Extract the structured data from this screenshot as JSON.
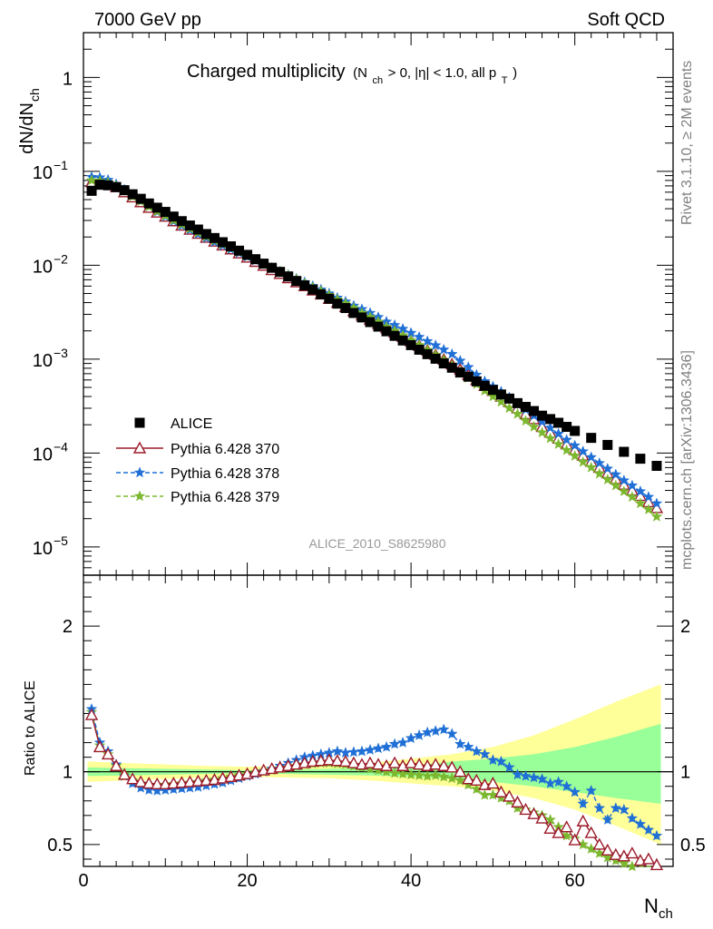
{
  "header": {
    "left": "7000 GeV pp",
    "right": "Soft QCD"
  },
  "side_labels": {
    "rivet": "Rivet 3.1.10, ≥ 2M events",
    "mcplots": "mcplots.cern.ch [arXiv:1306.3436]"
  },
  "plot_title": {
    "main": "Charged multiplicity",
    "paren_open": "(N",
    "sub1": "ch",
    "mid": " > 0, |η| < 1.0, all p",
    "sub2": "T",
    "paren_close": ")"
  },
  "analysis_id": "ALICE_2010_S8625980",
  "ylabel_top": {
    "main": "dN/dN",
    "sub": "ch"
  },
  "ylabel_ratio": "Ratio to ALICE",
  "xlabel": {
    "main": "N",
    "sub": "ch"
  },
  "chart_data": {
    "type": "scatter",
    "x_range": [
      0,
      72
    ],
    "x_ticks": [
      0,
      20,
      40,
      60
    ],
    "top_panel": {
      "yscale": "log",
      "y_range": [
        5e-06,
        3
      ],
      "y_tick_labels": [
        {
          "value": 1,
          "label": "1"
        },
        {
          "value": 0.1,
          "base": "10",
          "exp": "−1"
        },
        {
          "value": 0.01,
          "base": "10",
          "exp": "−2"
        },
        {
          "value": 0.001,
          "base": "10",
          "exp": "−3"
        },
        {
          "value": 0.0001,
          "base": "10",
          "exp": "−4"
        },
        {
          "value": 1e-05,
          "base": "10",
          "exp": "−5"
        }
      ]
    },
    "ratio_panel": {
      "y_range": [
        0.35,
        2.35
      ],
      "y_tick_labels": [
        {
          "value": 0.5,
          "label": "0.5"
        },
        {
          "value": 1,
          "label": "1"
        },
        {
          "value": 2,
          "label": "2"
        }
      ]
    },
    "legend": {
      "placement": "lower-left",
      "entries": [
        "ALICE",
        "Pythia 6.428 370",
        "Pythia 6.428 378",
        "Pythia 6.428 379"
      ]
    },
    "colors": {
      "data": "#000000",
      "p370": "#9b1b2a",
      "p378": "#1f6fd6",
      "p379": "#7cb82f",
      "band_outer": "#ffff99",
      "band_inner": "#99ff99"
    },
    "series": [
      {
        "name": "ALICE",
        "x": [
          1,
          2,
          3,
          4,
          5,
          6,
          7,
          8,
          9,
          10,
          11,
          12,
          13,
          14,
          15,
          16,
          17,
          18,
          19,
          20,
          21,
          22,
          23,
          24,
          25,
          26,
          27,
          28,
          29,
          30,
          31,
          32,
          33,
          34,
          35,
          36,
          37,
          38,
          39,
          40,
          41,
          42,
          43,
          44,
          45,
          46,
          47,
          48,
          49,
          50,
          51,
          52,
          53,
          54,
          55,
          56,
          57,
          58,
          59,
          60,
          62,
          64,
          66,
          68,
          70
        ],
        "y": [
          0.062,
          0.072,
          0.071,
          0.068,
          0.063,
          0.057,
          0.051,
          0.0455,
          0.041,
          0.037,
          0.033,
          0.0295,
          0.0265,
          0.024,
          0.0215,
          0.0195,
          0.0176,
          0.0159,
          0.0143,
          0.0129,
          0.0116,
          0.0104,
          0.0094,
          0.0085,
          0.0076,
          0.0068,
          0.0061,
          0.0055,
          0.0049,
          0.0044,
          0.0039,
          0.0035,
          0.0031,
          0.00278,
          0.00248,
          0.00222,
          0.00198,
          0.00177,
          0.00158,
          0.00141,
          0.00126,
          0.00113,
          0.00101,
          0.0009,
          0.00081,
          0.00072,
          0.00065,
          0.00058,
          0.00052,
          0.00047,
          0.00042,
          0.00038,
          0.00034,
          0.00031,
          0.00028,
          0.00025,
          0.00023,
          0.00021,
          0.00019,
          0.000172,
          0.000145,
          0.000122,
          0.000103,
          8.7e-05,
          7.3e-05
        ]
      },
      {
        "name": "Pythia 6.428 370",
        "x": [
          1,
          2,
          3,
          4,
          5,
          6,
          7,
          8,
          9,
          10,
          11,
          12,
          13,
          14,
          15,
          16,
          17,
          18,
          19,
          20,
          21,
          22,
          23,
          24,
          25,
          26,
          27,
          28,
          29,
          30,
          31,
          32,
          33,
          34,
          35,
          36,
          37,
          38,
          39,
          40,
          41,
          42,
          43,
          44,
          45,
          46,
          47,
          48,
          49,
          50,
          51,
          52,
          53,
          54,
          55,
          56,
          57,
          58,
          59,
          60,
          61,
          62,
          63,
          64,
          65,
          66,
          67,
          68,
          69,
          70
        ],
        "y": [
          0.077,
          0.076,
          0.074,
          0.068,
          0.06,
          0.053,
          0.047,
          0.041,
          0.0365,
          0.033,
          0.0295,
          0.0265,
          0.024,
          0.0217,
          0.0197,
          0.0179,
          0.0163,
          0.0148,
          0.0134,
          0.0121,
          0.0109,
          0.0099,
          0.0089,
          0.0081,
          0.0073,
          0.0066,
          0.006,
          0.0054,
          0.0049,
          0.0044,
          0.004,
          0.0036,
          0.00325,
          0.00293,
          0.00264,
          0.00238,
          0.00214,
          0.00192,
          0.00173,
          0.00155,
          0.00139,
          0.00124,
          0.00111,
          0.00099,
          0.00088,
          0.00078,
          0.00068,
          0.0006,
          0.00052,
          0.00046,
          0.0004,
          0.00035,
          0.0003,
          0.00026,
          0.00023,
          0.00019,
          0.000165,
          0.000143,
          0.000124,
          0.000108,
          9.4e-05,
          8.1e-05,
          7e-05,
          6.1e-05,
          5.3e-05,
          4.6e-05,
          4e-05,
          3.5e-05,
          3e-05,
          2.6e-05
        ]
      },
      {
        "name": "Pythia 6.428 378",
        "x": [
          1,
          2,
          3,
          4,
          5,
          6,
          7,
          8,
          9,
          10,
          11,
          12,
          13,
          14,
          15,
          16,
          17,
          18,
          19,
          20,
          21,
          22,
          23,
          24,
          25,
          26,
          27,
          28,
          29,
          30,
          31,
          32,
          33,
          34,
          35,
          36,
          37,
          38,
          39,
          40,
          41,
          42,
          43,
          44,
          45,
          46,
          47,
          48,
          49,
          50,
          51,
          52,
          53,
          54,
          55,
          56,
          57,
          58,
          59,
          60,
          61,
          62,
          63,
          64,
          65,
          66,
          67,
          68,
          69,
          70
        ],
        "y": [
          0.087,
          0.086,
          0.081,
          0.073,
          0.064,
          0.056,
          0.048,
          0.042,
          0.037,
          0.033,
          0.0295,
          0.0264,
          0.0238,
          0.0215,
          0.0195,
          0.0177,
          0.0162,
          0.0148,
          0.0135,
          0.0123,
          0.0112,
          0.0102,
          0.0093,
          0.0086,
          0.0079,
          0.0072,
          0.0066,
          0.006,
          0.0055,
          0.005,
          0.0045,
          0.0041,
          0.0037,
          0.0034,
          0.0031,
          0.0028,
          0.0025,
          0.0023,
          0.0021,
          0.0019,
          0.00172,
          0.00155,
          0.0014,
          0.00126,
          0.00113,
          0.00096,
          0.00082,
          0.00068,
          0.00058,
          0.00051,
          0.00045,
          0.00039,
          0.00033,
          0.00029,
          0.00025,
          0.000215,
          0.000185,
          0.00016,
          0.000138,
          0.00012,
          0.000104,
          9e-05,
          7.8e-05,
          6.8e-05,
          5.9e-05,
          5.1e-05,
          4.5e-05,
          3.9e-05,
          3.4e-05,
          2.9e-05
        ]
      },
      {
        "name": "Pythia 6.428 379",
        "x": [
          1,
          2,
          3,
          4,
          5,
          6,
          7,
          8,
          9,
          10,
          11,
          12,
          13,
          14,
          15,
          16,
          17,
          18,
          19,
          20,
          21,
          22,
          23,
          24,
          25,
          26,
          27,
          28,
          29,
          30,
          31,
          32,
          33,
          34,
          35,
          36,
          37,
          38,
          39,
          40,
          41,
          42,
          43,
          44,
          45,
          46,
          47,
          48,
          49,
          50,
          51,
          52,
          53,
          54,
          55,
          56,
          57,
          58,
          59,
          60,
          61,
          62,
          63,
          64,
          65,
          66,
          67,
          68,
          69,
          70
        ],
        "y": [
          0.08,
          0.079,
          0.076,
          0.07,
          0.062,
          0.054,
          0.048,
          0.042,
          0.0375,
          0.0337,
          0.0302,
          0.0272,
          0.0246,
          0.0223,
          0.0202,
          0.0184,
          0.0168,
          0.0153,
          0.0139,
          0.0126,
          0.0114,
          0.0103,
          0.0094,
          0.0086,
          0.0078,
          0.0071,
          0.0064,
          0.0058,
          0.0053,
          0.0048,
          0.0043,
          0.0039,
          0.0035,
          0.0031,
          0.0028,
          0.0025,
          0.0022,
          0.002,
          0.00178,
          0.00159,
          0.00141,
          0.00125,
          0.00111,
          0.00098,
          0.00086,
          0.00074,
          0.00063,
          0.00054,
          0.00046,
          0.0004,
          0.00035,
          0.0003,
          0.00026,
          0.00022,
          0.00019,
          0.000165,
          0.000143,
          0.000124,
          0.000107,
          9.3e-05,
          8e-05,
          7e-05,
          6e-05,
          5.2e-05,
          4.5e-05,
          3.9e-05,
          3.4e-05,
          2.9e-05,
          2.5e-05,
          2.1e-05
        ]
      }
    ],
    "ratios": {
      "x": [
        1,
        2,
        3,
        4,
        5,
        6,
        7,
        8,
        9,
        10,
        11,
        12,
        13,
        14,
        15,
        16,
        17,
        18,
        19,
        20,
        21,
        22,
        23,
        24,
        25,
        26,
        27,
        28,
        29,
        30,
        31,
        32,
        33,
        34,
        35,
        36,
        37,
        38,
        39,
        40,
        41,
        42,
        43,
        44,
        45,
        46,
        47,
        48,
        49,
        50,
        51,
        52,
        53,
        54,
        55,
        56,
        57,
        58,
        59,
        60,
        61,
        62,
        63,
        64,
        65,
        66,
        67,
        68,
        69,
        70
      ],
      "p370": [
        1.39,
        1.17,
        1.12,
        1.04,
        0.98,
        0.95,
        0.93,
        0.92,
        0.915,
        0.915,
        0.92,
        0.925,
        0.93,
        0.935,
        0.94,
        0.945,
        0.955,
        0.965,
        0.975,
        0.985,
        1.0,
        1.01,
        1.02,
        1.03,
        1.04,
        1.05,
        1.06,
        1.07,
        1.075,
        1.08,
        1.075,
        1.07,
        1.06,
        1.05,
        1.06,
        1.05,
        1.04,
        1.06,
        1.04,
        1.06,
        1.05,
        1.04,
        1.05,
        1.04,
        1.03,
        1.0,
        0.95,
        0.94,
        0.91,
        0.92,
        0.86,
        0.83,
        0.79,
        0.74,
        0.71,
        0.68,
        0.61,
        0.58,
        0.62,
        0.53,
        0.66,
        0.58,
        0.5,
        0.46,
        0.43,
        0.42,
        0.44,
        0.39,
        0.4,
        0.36
      ],
      "p378": [
        1.43,
        1.2,
        1.14,
        1.05,
        0.97,
        0.92,
        0.89,
        0.875,
        0.87,
        0.875,
        0.88,
        0.885,
        0.89,
        0.895,
        0.905,
        0.915,
        0.925,
        0.94,
        0.955,
        0.97,
        0.985,
        1.0,
        1.02,
        1.04,
        1.06,
        1.08,
        1.1,
        1.11,
        1.12,
        1.13,
        1.14,
        1.13,
        1.135,
        1.14,
        1.15,
        1.16,
        1.17,
        1.19,
        1.2,
        1.23,
        1.25,
        1.27,
        1.28,
        1.29,
        1.26,
        1.19,
        1.17,
        1.14,
        1.12,
        1.08,
        1.07,
        1.03,
        0.98,
        0.97,
        0.96,
        0.95,
        0.92,
        0.93,
        0.9,
        0.86,
        0.78,
        0.87,
        0.75,
        0.67,
        0.75,
        0.74,
        0.68,
        0.64,
        0.6,
        0.56
      ],
      "p379": [
        1.41,
        1.18,
        1.12,
        1.04,
        0.98,
        0.94,
        0.92,
        0.91,
        0.91,
        0.91,
        0.915,
        0.92,
        0.925,
        0.93,
        0.94,
        0.945,
        0.955,
        0.965,
        0.975,
        0.985,
        0.995,
        1.005,
        1.01,
        1.02,
        1.03,
        1.04,
        1.05,
        1.055,
        1.06,
        1.06,
        1.055,
        1.05,
        1.04,
        1.03,
        1.02,
        1.01,
        1.0,
        0.99,
        0.985,
        0.98,
        0.975,
        0.97,
        0.975,
        0.965,
        0.955,
        0.94,
        0.91,
        0.88,
        0.84,
        0.84,
        0.82,
        0.8,
        0.75,
        0.74,
        0.72,
        0.7,
        0.67,
        0.62,
        0.56,
        0.54,
        0.5,
        0.47,
        0.44,
        0.41,
        0.39,
        0.37,
        0.35,
        0.33,
        0.31,
        0.29
      ]
    },
    "bands": {
      "x": [
        0.5,
        5,
        10,
        15,
        20,
        25,
        30,
        35,
        40,
        45,
        50,
        55,
        60,
        65,
        70.5
      ],
      "outer_lo": [
        0.93,
        0.94,
        0.95,
        0.96,
        0.965,
        0.96,
        0.955,
        0.94,
        0.92,
        0.9,
        0.87,
        0.82,
        0.74,
        0.63,
        0.5
      ],
      "outer_hi": [
        1.07,
        1.06,
        1.05,
        1.04,
        1.035,
        1.04,
        1.05,
        1.06,
        1.09,
        1.12,
        1.17,
        1.25,
        1.36,
        1.48,
        1.6
      ],
      "inner_lo": [
        0.97,
        0.975,
        0.98,
        0.985,
        0.99,
        0.985,
        0.98,
        0.975,
        0.965,
        0.95,
        0.93,
        0.9,
        0.86,
        0.82,
        0.78
      ],
      "inner_hi": [
        1.03,
        1.025,
        1.02,
        1.015,
        1.01,
        1.015,
        1.02,
        1.025,
        1.04,
        1.07,
        1.09,
        1.12,
        1.17,
        1.24,
        1.33
      ]
    }
  }
}
